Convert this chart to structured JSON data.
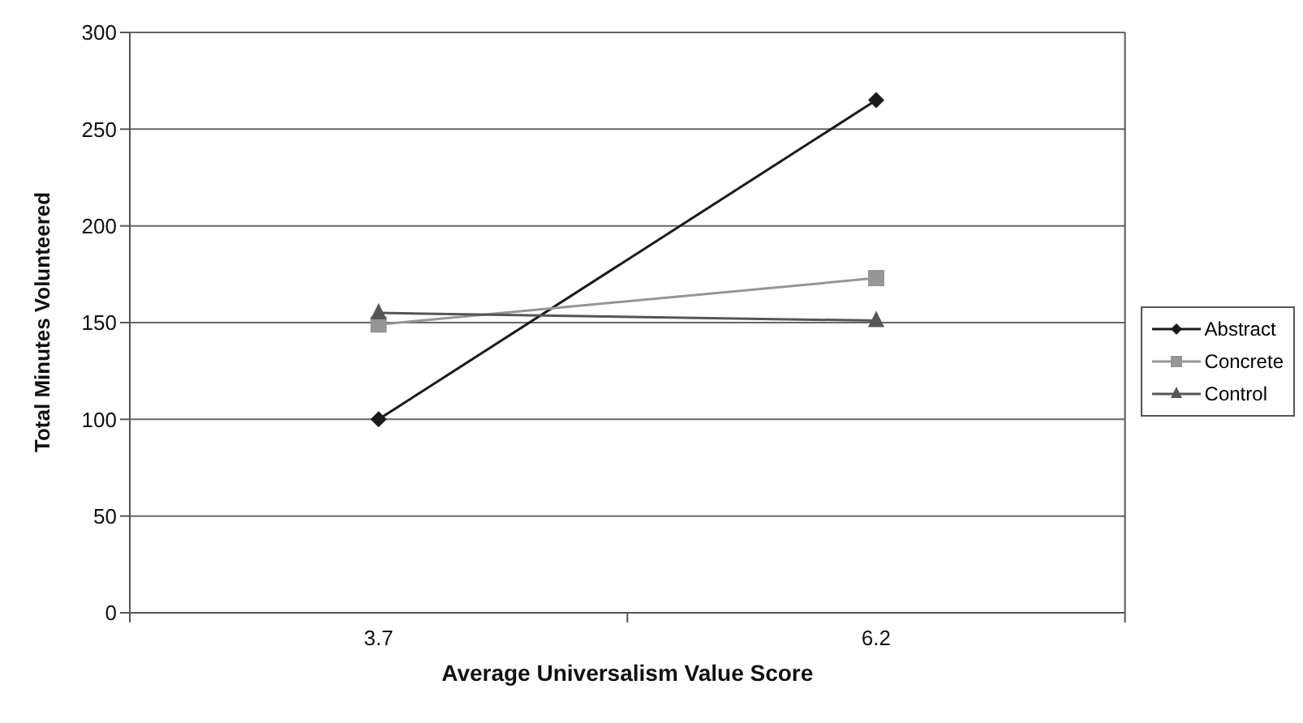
{
  "chart_data": {
    "type": "line",
    "xlabel": "Average Universalism Value Score",
    "ylabel": "Total Minutes Volunteered",
    "categories": [
      "3.7",
      "6.2"
    ],
    "series": [
      {
        "name": "Abstract",
        "color": "#1a1a1a",
        "marker": "diamond",
        "values": [
          100,
          265
        ]
      },
      {
        "name": "Concrete",
        "color": "#959595",
        "marker": "square",
        "values": [
          149,
          173
        ]
      },
      {
        "name": "Control",
        "color": "#555555",
        "marker": "triangle",
        "values": [
          155,
          151
        ]
      }
    ],
    "ylim": [
      0,
      300
    ],
    "yticks": [
      0,
      50,
      100,
      150,
      200,
      250,
      300
    ],
    "grid": "y",
    "legend": "right"
  }
}
